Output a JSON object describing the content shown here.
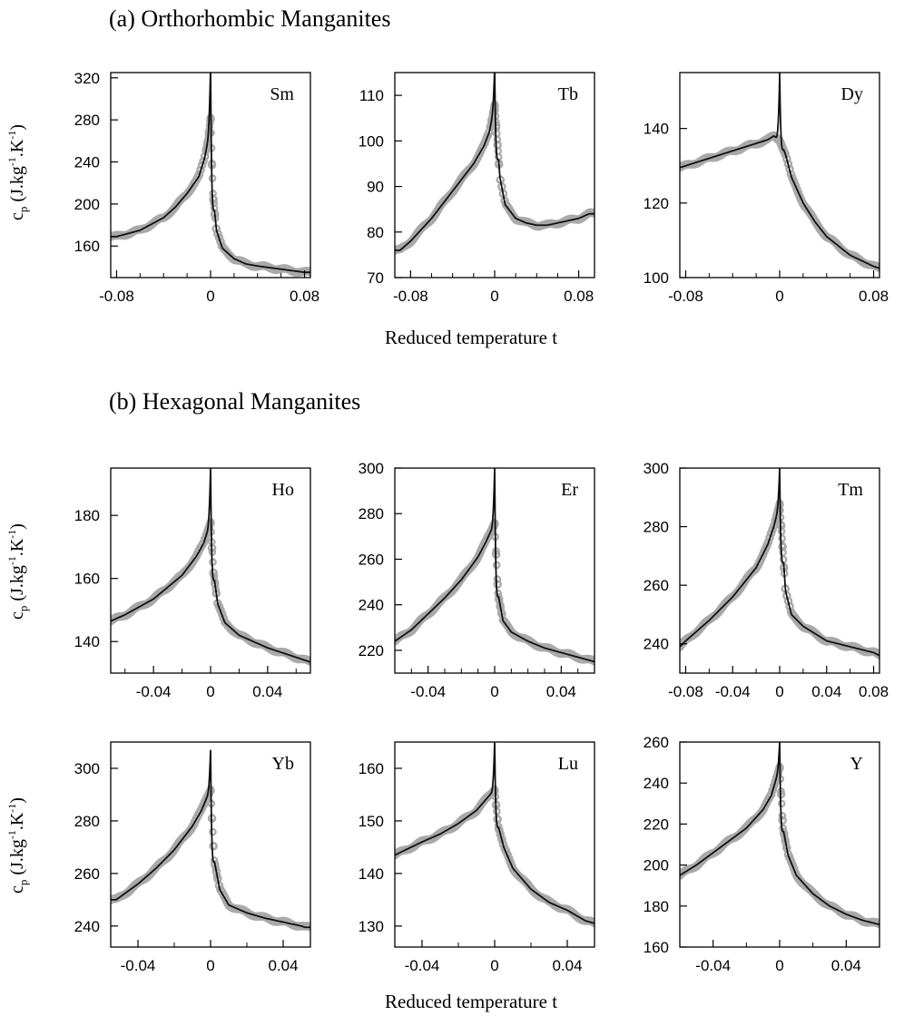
{
  "section_a_title": "(a)  Orthorhombic Manganites",
  "section_b_title": "(b)  Hexagonal Manganites",
  "y_axis_label_main": "c",
  "y_axis_label_sub": "p",
  "y_axis_label_units": "(J.kg",
  "y_axis_label_exp1": "-1",
  "y_axis_label_mid": ".K",
  "y_axis_label_exp2": "-1",
  "y_axis_label_close": ")",
  "x_axis_label": "Reduced temperature t",
  "colors": {
    "data_points": "#a9a9a9",
    "fit_line": "#111111",
    "axis": "#000000"
  },
  "chart_data": [
    {
      "type": "line",
      "panel_label": "Sm",
      "section": "a",
      "xlim": [
        -0.085,
        0.085
      ],
      "ylim": [
        130,
        325
      ],
      "xticks": [
        -0.08,
        0,
        0.08
      ],
      "xtick_labels": [
        "-0.08",
        "0",
        "0.08"
      ],
      "xminor": [
        -0.06,
        -0.04,
        -0.02,
        0.02,
        0.04,
        0.06
      ],
      "yticks": [
        160,
        200,
        240,
        280,
        320
      ],
      "ytick_labels": [
        "160",
        "200",
        "240",
        "280",
        "320"
      ],
      "peak": 330,
      "data_peak": 282,
      "series": [
        {
          "role": "data",
          "x": [
            -0.08,
            -0.06,
            -0.04,
            -0.03,
            -0.02,
            -0.01,
            -0.005,
            -0.002,
            0,
            0.002,
            0.005,
            0.01,
            0.02,
            0.03,
            0.04,
            0.06,
            0.08
          ],
          "y": [
            169,
            175,
            187,
            197,
            210,
            226,
            244,
            262,
            282,
            210,
            175,
            158,
            148,
            143,
            141,
            138,
            135
          ]
        }
      ]
    },
    {
      "type": "line",
      "panel_label": "Tb",
      "section": "a",
      "xlim": [
        -0.095,
        0.095
      ],
      "ylim": [
        70,
        115
      ],
      "xticks": [
        -0.08,
        0,
        0.08
      ],
      "xtick_labels": [
        "-0.08",
        "0",
        "0.08"
      ],
      "xminor": [
        -0.06,
        -0.04,
        -0.02,
        0.02,
        0.04,
        0.06
      ],
      "yticks": [
        70,
        80,
        90,
        100,
        110
      ],
      "ytick_labels": [
        "70",
        "80",
        "90",
        "100",
        "110"
      ],
      "peak": 116,
      "data_peak": 108,
      "series": [
        {
          "role": "data",
          "x": [
            -0.09,
            -0.08,
            -0.06,
            -0.04,
            -0.02,
            -0.01,
            -0.005,
            0,
            0.005,
            0.01,
            0.02,
            0.03,
            0.04,
            0.05,
            0.06,
            0.07,
            0.08,
            0.09
          ],
          "y": [
            76,
            78,
            83,
            89,
            95,
            99,
            102,
            108,
            92,
            86,
            83,
            82,
            81.5,
            81.5,
            82,
            82.5,
            83,
            84
          ]
        }
      ]
    },
    {
      "type": "line",
      "panel_label": "Dy",
      "section": "a",
      "xlim": [
        -0.085,
        0.085
      ],
      "ylim": [
        100,
        155
      ],
      "xticks": [
        -0.08,
        0,
        0.08
      ],
      "xtick_labels": [
        "-0.08",
        "0",
        "0.08"
      ],
      "xminor": [
        -0.06,
        -0.04,
        -0.02,
        0.02,
        0.04,
        0.06
      ],
      "yticks": [
        100,
        120,
        140
      ],
      "ytick_labels": [
        "100",
        "120",
        "140"
      ],
      "peak": 155,
      "data_peak": 138,
      "series": [
        {
          "role": "data",
          "x": [
            -0.085,
            -0.08,
            -0.06,
            -0.04,
            -0.02,
            -0.01,
            -0.005,
            0,
            0.005,
            0.01,
            0.02,
            0.03,
            0.04,
            0.06,
            0.08,
            0.085
          ],
          "y": [
            129.5,
            130,
            132,
            134,
            136,
            137,
            138,
            137,
            133,
            127,
            120,
            115,
            111,
            106,
            103,
            102.5
          ]
        }
      ]
    },
    {
      "type": "line",
      "panel_label": "Ho",
      "section": "b",
      "xlim": [
        -0.07,
        0.07
      ],
      "ylim": [
        130,
        195
      ],
      "xticks": [
        -0.04,
        0,
        0.04
      ],
      "xtick_labels": [
        "-0.04",
        "0",
        "0.04"
      ],
      "xminor": [
        -0.06,
        -0.02,
        0.02,
        0.06
      ],
      "yticks": [
        140,
        160,
        180
      ],
      "ytick_labels": [
        "140",
        "160",
        "180"
      ],
      "peak": 195,
      "data_peak": 178,
      "series": [
        {
          "role": "data",
          "x": [
            -0.07,
            -0.06,
            -0.04,
            -0.02,
            -0.01,
            -0.005,
            0,
            0.002,
            0.005,
            0.01,
            0.02,
            0.04,
            0.06,
            0.07
          ],
          "y": [
            146.5,
            148.5,
            153.5,
            161,
            167,
            171,
            178,
            162,
            152,
            146,
            142,
            138,
            135,
            133.5
          ]
        }
      ]
    },
    {
      "type": "line",
      "panel_label": "Er",
      "section": "b",
      "xlim": [
        -0.06,
        0.06
      ],
      "ylim": [
        210,
        300
      ],
      "xticks": [
        -0.04,
        0,
        0.04
      ],
      "xtick_labels": [
        "-0.04",
        "0",
        "0.04"
      ],
      "xminor": [
        -0.05,
        -0.03,
        -0.02,
        -0.01,
        0.01,
        0.02,
        0.03,
        0.05
      ],
      "yticks": [
        220,
        240,
        260,
        280,
        300
      ],
      "ytick_labels": [
        "220",
        "240",
        "260",
        "280",
        "300"
      ],
      "peak": 300,
      "data_peak": 276,
      "series": [
        {
          "role": "data",
          "x": [
            -0.06,
            -0.05,
            -0.04,
            -0.03,
            -0.02,
            -0.01,
            -0.005,
            0,
            0.002,
            0.005,
            0.01,
            0.02,
            0.03,
            0.04,
            0.05,
            0.06
          ],
          "y": [
            224,
            229,
            236,
            243,
            251,
            261,
            268,
            276,
            245,
            233,
            228,
            224,
            221,
            219,
            217,
            215
          ]
        }
      ]
    },
    {
      "type": "line",
      "panel_label": "Tm",
      "section": "b",
      "xlim": [
        -0.085,
        0.085
      ],
      "ylim": [
        230,
        300
      ],
      "xticks": [
        -0.08,
        -0.04,
        0,
        0.04,
        0.08
      ],
      "xtick_labels": [
        "-0.08",
        "-0.04",
        "0",
        "0.04",
        "0.08"
      ],
      "xminor": [
        -0.06,
        -0.02,
        0.02,
        0.06
      ],
      "yticks": [
        240,
        260,
        280,
        300
      ],
      "ytick_labels": [
        "240",
        "260",
        "280",
        "300"
      ],
      "peak": 300,
      "data_peak": 288,
      "series": [
        {
          "role": "data",
          "x": [
            -0.085,
            -0.08,
            -0.06,
            -0.04,
            -0.02,
            -0.01,
            -0.005,
            0,
            0.005,
            0.01,
            0.02,
            0.04,
            0.06,
            0.08,
            0.085
          ],
          "y": [
            239,
            241,
            248,
            256,
            266,
            274,
            280,
            288,
            258,
            250,
            246,
            241,
            239,
            237,
            236
          ]
        }
      ]
    },
    {
      "type": "line",
      "panel_label": "Yb",
      "section": "b",
      "xlim": [
        -0.055,
        0.055
      ],
      "ylim": [
        232,
        310
      ],
      "xticks": [
        -0.04,
        0,
        0.04
      ],
      "xtick_labels": [
        "-0.04",
        "0",
        "0.04"
      ],
      "xminor": [
        -0.02,
        0.02
      ],
      "yticks": [
        240,
        260,
        280,
        300
      ],
      "ytick_labels": [
        "240",
        "260",
        "280",
        "300"
      ],
      "peak": 307,
      "data_peak": 292,
      "series": [
        {
          "role": "data",
          "x": [
            -0.052,
            -0.04,
            -0.03,
            -0.02,
            -0.01,
            -0.005,
            -0.002,
            0,
            0.002,
            0.005,
            0.01,
            0.02,
            0.03,
            0.04,
            0.05,
            0.052
          ],
          "y": [
            250,
            256,
            262,
            269,
            278,
            284,
            289,
            292,
            265,
            254,
            248,
            245,
            243,
            241.5,
            240,
            239.5
          ]
        }
      ]
    },
    {
      "type": "line",
      "panel_label": "Lu",
      "section": "b",
      "xlim": [
        -0.055,
        0.055
      ],
      "ylim": [
        126,
        165
      ],
      "xticks": [
        -0.04,
        0,
        0.04
      ],
      "xtick_labels": [
        "-0.04",
        "0",
        "0.04"
      ],
      "xminor": [
        -0.02,
        0.02
      ],
      "yticks": [
        130,
        140,
        150,
        160
      ],
      "ytick_labels": [
        "130",
        "140",
        "150",
        "160"
      ],
      "peak": 165,
      "data_peak": 156,
      "series": [
        {
          "role": "data",
          "x": [
            -0.055,
            -0.04,
            -0.03,
            -0.02,
            -0.01,
            -0.005,
            0,
            0.002,
            0.005,
            0.01,
            0.02,
            0.03,
            0.04,
            0.05,
            0.055
          ],
          "y": [
            143.5,
            146,
            147.5,
            149.5,
            152,
            154,
            156,
            149,
            145,
            141,
            137,
            134.5,
            133,
            131,
            130.5
          ]
        }
      ]
    },
    {
      "type": "line",
      "panel_label": "Y",
      "section": "b",
      "xlim": [
        -0.06,
        0.06
      ],
      "ylim": [
        160,
        260
      ],
      "xticks": [
        -0.04,
        0,
        0.04
      ],
      "xtick_labels": [
        "-0.04",
        "0",
        "0.04"
      ],
      "xminor": [
        -0.02,
        0.02
      ],
      "yticks": [
        160,
        180,
        200,
        220,
        240,
        260
      ],
      "ytick_labels": [
        "160",
        "180",
        "200",
        "220",
        "240",
        "260"
      ],
      "peak": 260,
      "data_peak": 248,
      "series": [
        {
          "role": "data",
          "x": [
            -0.06,
            -0.05,
            -0.04,
            -0.03,
            -0.02,
            -0.01,
            -0.005,
            0,
            0.002,
            0.005,
            0.01,
            0.02,
            0.03,
            0.04,
            0.05,
            0.06
          ],
          "y": [
            195,
            200,
            206,
            212,
            218,
            227,
            234,
            248,
            218,
            205,
            195,
            186,
            180,
            176,
            173,
            171
          ]
        }
      ]
    }
  ]
}
